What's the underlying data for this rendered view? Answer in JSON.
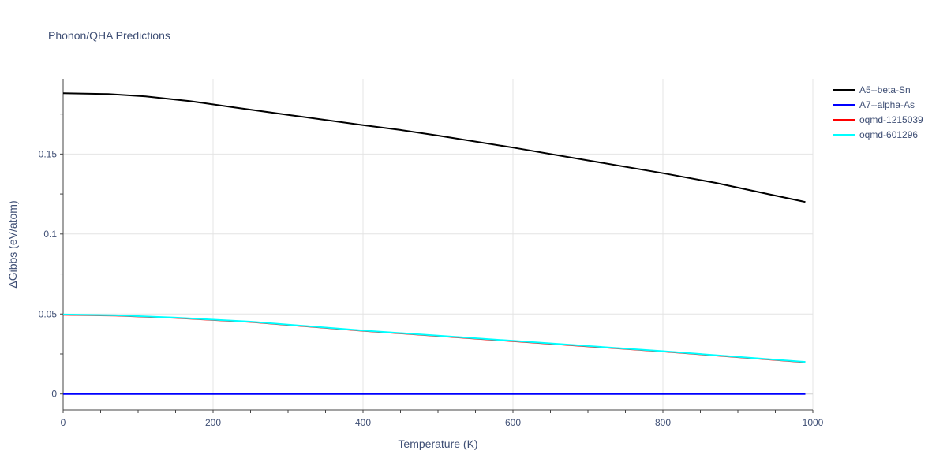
{
  "chart_data": {
    "type": "line",
    "title": "Phonon/QHA Predictions",
    "xlabel": "Temperature (K)",
    "ylabel": "ΔGibbs (eV/atom)",
    "xlim": [
      0,
      1000
    ],
    "ylim": [
      -0.01,
      0.197
    ],
    "x_ticks": [
      0,
      200,
      400,
      600,
      800,
      1000
    ],
    "y_ticks": [
      0,
      0.05,
      0.1,
      0.15
    ],
    "y_tick_labels": [
      "0",
      "0.05",
      "0.1",
      "0.15"
    ],
    "grid": true,
    "legend_position": "top-right",
    "series": [
      {
        "name": "A5--beta-Sn",
        "color": "#000000",
        "x": [
          0,
          60,
          110,
          170,
          230,
          300,
          400,
          450,
          500,
          600,
          700,
          800,
          870,
          940,
          990
        ],
        "y": [
          0.188,
          0.1875,
          0.186,
          0.183,
          0.179,
          0.1745,
          0.168,
          0.165,
          0.1615,
          0.154,
          0.146,
          0.138,
          0.132,
          0.125,
          0.12
        ]
      },
      {
        "name": "A7--alpha-As",
        "color": "#0000ff",
        "x": [
          0,
          990
        ],
        "y": [
          0,
          0
        ]
      },
      {
        "name": "oqmd-1215039",
        "color": "#ff0000",
        "x": [
          0,
          70,
          150,
          250,
          400,
          600,
          800,
          990
        ],
        "y": [
          0.0495,
          0.049,
          0.0475,
          0.045,
          0.0395,
          0.033,
          0.0265,
          0.0198
        ]
      },
      {
        "name": "oqmd-601296",
        "color": "#00ffff",
        "x": [
          0,
          70,
          150,
          250,
          400,
          600,
          800,
          990
        ],
        "y": [
          0.0497,
          0.0492,
          0.0477,
          0.0452,
          0.0397,
          0.0332,
          0.0267,
          0.02
        ]
      }
    ]
  }
}
